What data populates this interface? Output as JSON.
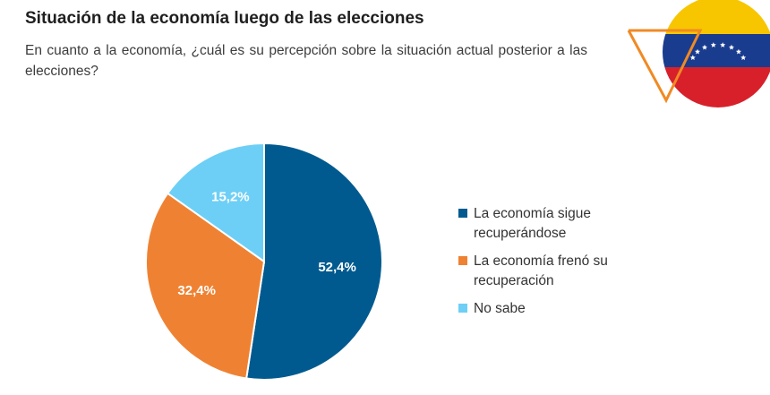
{
  "header": {
    "title": "Situación de la economía luego de las elecciones",
    "subtitle": "En cuanto a la economía, ¿cuál es su percepción sobre la situación actual posterior a las elecciones?"
  },
  "decoration": {
    "flag_icon": "venezuela-flag-icon",
    "flag_colors": [
      "#F7C600",
      "#1A3C8E",
      "#D8202B"
    ],
    "accent_triangle": "#F08A24"
  },
  "chart_data": {
    "type": "pie",
    "categories": [
      "La economía sigue recuperándose",
      "La economía frenó su recuperación",
      "No sabe"
    ],
    "values": [
      52.4,
      32.4,
      15.2
    ],
    "data_labels": [
      "52,4%",
      "32,4%",
      "15,2%"
    ],
    "colors": [
      "#005A8F",
      "#EF8232",
      "#6DCFF6"
    ],
    "legend_position": "right"
  }
}
